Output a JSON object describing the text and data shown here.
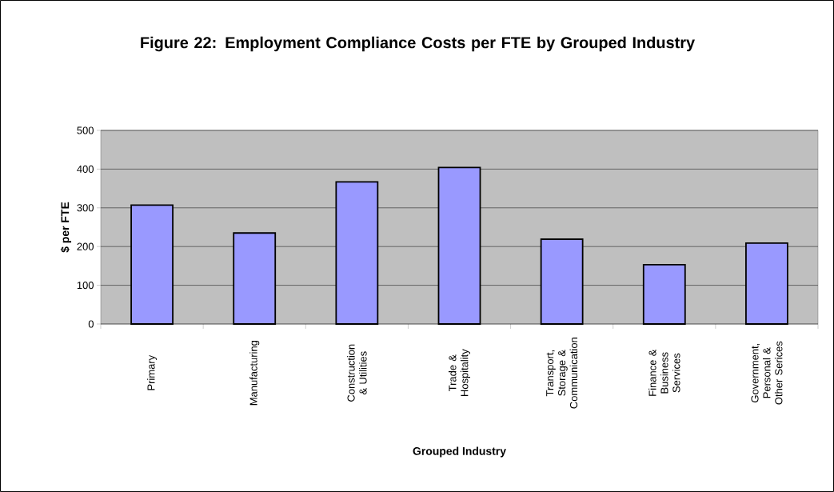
{
  "chart_data": {
    "type": "bar",
    "title": "Figure 22: Employment Compliance Costs per FTE by Grouped Industry",
    "xlabel": "Grouped Industry",
    "ylabel": "$ per FTE",
    "categories": [
      "Primary",
      "Manufacturing",
      "Construction & Utilities",
      "Trade & Hospitality",
      "Transport, Storage & Communication",
      "Finance & Business Services",
      "Government, Personal & Other Serices"
    ],
    "values": [
      307,
      235,
      367,
      404,
      219,
      153,
      209
    ],
    "color": "#9999ff",
    "ylim": [
      0,
      500
    ],
    "yticks": [
      0,
      100,
      200,
      300,
      400,
      500
    ],
    "grid": "y"
  }
}
